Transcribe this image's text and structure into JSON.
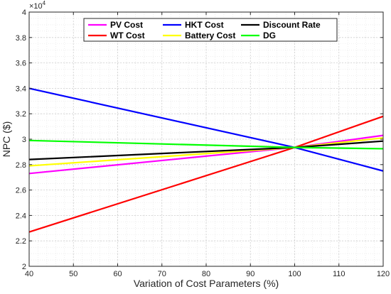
{
  "chart_data": {
    "type": "line",
    "xlabel": "Variation of Cost Parameters (%)",
    "ylabel": "NPC ($)",
    "y_multiplier_base": "×10",
    "y_multiplier_exp": "4",
    "xlim": [
      40,
      120
    ],
    "ylim": [
      2.0,
      4.0
    ],
    "y_scale_factor": 10000,
    "x_ticks": [
      40,
      50,
      60,
      70,
      80,
      90,
      100,
      110,
      120
    ],
    "y_ticks": [
      2.0,
      2.2,
      2.4,
      2.6,
      2.8,
      3.0,
      3.2,
      3.4,
      3.6,
      3.8,
      4.0
    ],
    "y_tick_labels": [
      "2",
      "2.2",
      "2.4",
      "2.6",
      "2.8",
      "3",
      "3.2",
      "3.4",
      "3.6",
      "3.8",
      "4"
    ],
    "grid": true,
    "legend_position": "top-center",
    "series": [
      {
        "name": "PV Cost",
        "color": "#ff00ff",
        "x": [
          40,
          100,
          120
        ],
        "y": [
          2.73,
          2.935,
          3.03
        ]
      },
      {
        "name": "WT Cost",
        "color": "#ff0000",
        "x": [
          40,
          100,
          120
        ],
        "y": [
          2.27,
          2.935,
          3.18
        ]
      },
      {
        "name": "HKT Cost",
        "color": "#0000ff",
        "x": [
          40,
          100,
          120
        ],
        "y": [
          3.4,
          2.935,
          2.75
        ]
      },
      {
        "name": "Battery Cost",
        "color": "#ffff00",
        "x": [
          40,
          100,
          120
        ],
        "y": [
          2.79,
          2.935,
          3.01
        ]
      },
      {
        "name": "Discount Rate",
        "color": "#000000",
        "x": [
          40,
          100,
          120
        ],
        "y": [
          2.84,
          2.935,
          2.985
        ]
      },
      {
        "name": "DG",
        "color": "#00ff00",
        "x": [
          40,
          100,
          120
        ],
        "y": [
          2.99,
          2.935,
          2.925
        ]
      }
    ]
  }
}
